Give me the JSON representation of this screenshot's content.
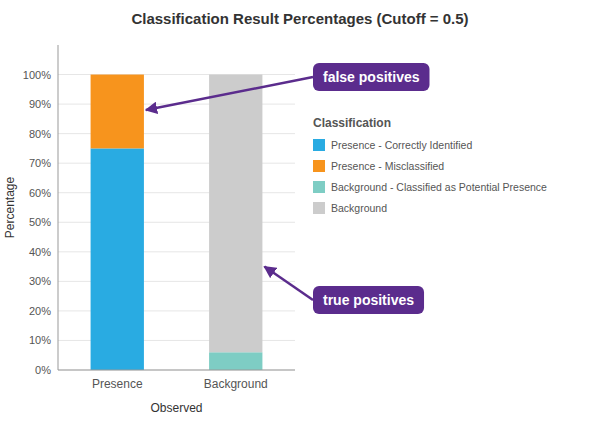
{
  "chart_data": {
    "type": "bar",
    "stacked": true,
    "title": "Classification Result Percentages (Cutoff = 0.5)",
    "x_label": "Observed",
    "y_label": "Percentage",
    "categories": [
      "Presence",
      "Background"
    ],
    "series": [
      {
        "name": "Presence - Correctly Identified",
        "color": "#29ABE2",
        "values": [
          75,
          0
        ]
      },
      {
        "name": "Presence - Misclassified",
        "color": "#F7941D",
        "values": [
          25,
          0
        ]
      },
      {
        "name": "Background - Classified as Potential Presence",
        "color": "#7ECDC4",
        "values": [
          0,
          6
        ]
      },
      {
        "name": "Background",
        "color": "#CCCCCC",
        "values": [
          0,
          94
        ]
      }
    ],
    "ylim": [
      0,
      110
    ],
    "yticks": [
      {
        "value": 0,
        "label": "0%"
      },
      {
        "value": 10,
        "label": "10%"
      },
      {
        "value": 20,
        "label": "20%"
      },
      {
        "value": 30,
        "label": "30%"
      },
      {
        "value": 40,
        "label": "40%"
      },
      {
        "value": 50,
        "label": "50%"
      },
      {
        "value": 60,
        "label": "60%"
      },
      {
        "value": 70,
        "label": "70%"
      },
      {
        "value": 80,
        "label": "80%"
      },
      {
        "value": 90,
        "label": "90%"
      },
      {
        "value": 100,
        "label": "100%"
      }
    ],
    "grid": true,
    "legend": "right",
    "legend_title": "Classification",
    "annotations": [
      {
        "text": "false positives",
        "x": "Presence",
        "y": 88,
        "color": "#5B2C8D"
      },
      {
        "text": "true positives",
        "x": "Background",
        "y": 35,
        "color": "#5B2C8D"
      }
    ]
  }
}
